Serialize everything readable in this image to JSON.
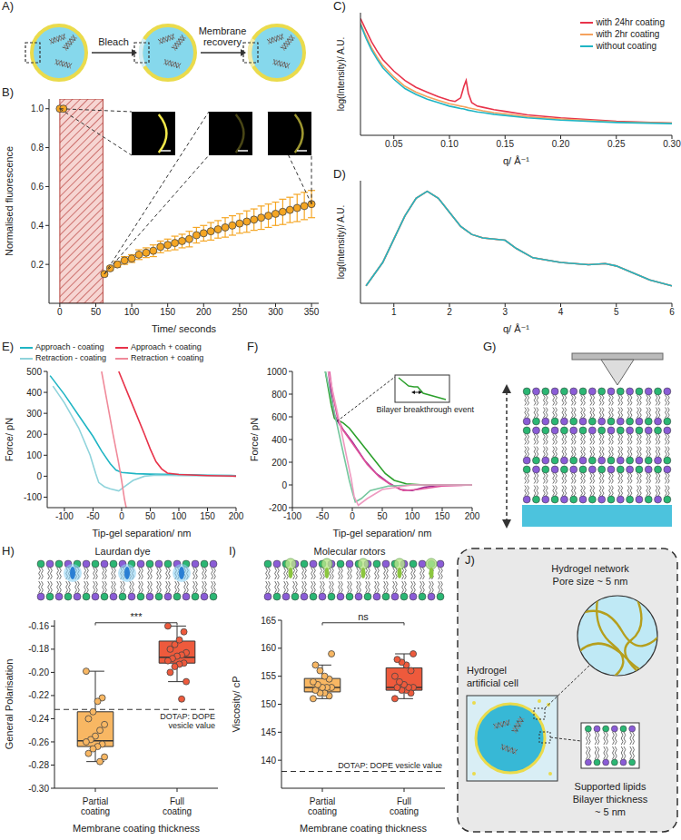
{
  "chart_data": [
    {
      "panel": "B)",
      "type": "scatter",
      "x_label": "Time/ seconds",
      "y_label": "Normalised fluorescence",
      "x": [
        0,
        5,
        62,
        70,
        80,
        90,
        100,
        110,
        120,
        130,
        140,
        150,
        160,
        170,
        180,
        190,
        200,
        210,
        220,
        230,
        240,
        250,
        260,
        270,
        280,
        290,
        300,
        310,
        320,
        330,
        340,
        350
      ],
      "values": [
        1.0,
        1.0,
        0.15,
        0.18,
        0.2,
        0.22,
        0.23,
        0.25,
        0.26,
        0.27,
        0.29,
        0.3,
        0.31,
        0.32,
        0.33,
        0.35,
        0.36,
        0.37,
        0.38,
        0.39,
        0.4,
        0.41,
        0.42,
        0.43,
        0.44,
        0.45,
        0.46,
        0.47,
        0.48,
        0.49,
        0.5,
        0.51
      ],
      "error": [
        0,
        0,
        0.01,
        0.01,
        0.015,
        0.02,
        0.02,
        0.025,
        0.025,
        0.03,
        0.03,
        0.03,
        0.035,
        0.035,
        0.04,
        0.04,
        0.04,
        0.045,
        0.045,
        0.05,
        0.05,
        0.05,
        0.055,
        0.055,
        0.06,
        0.06,
        0.06,
        0.065,
        0.065,
        0.07,
        0.07,
        0.07
      ],
      "color": "#f5a623",
      "marker": "circle",
      "shaded_region": [
        0,
        60
      ],
      "xlim": [
        -15,
        360
      ],
      "ylim": [
        0,
        1.05
      ],
      "xticks": [
        0,
        50,
        100,
        150,
        200,
        250,
        300,
        350
      ],
      "yticks": [
        0.2,
        0.4,
        0.6,
        0.8,
        {
          "value": 1.0,
          "label": "1.0"
        }
      ]
    },
    {
      "panel": "C)",
      "type": "line",
      "x_label": "q/ Å⁻¹",
      "y_label": "log(Intensity)/ A.U.",
      "x": [
        0.02,
        0.025,
        0.03,
        0.035,
        0.04,
        0.05,
        0.06,
        0.07,
        0.08,
        0.09,
        0.1,
        0.105,
        0.11,
        0.113,
        0.115,
        0.117,
        0.12,
        0.125,
        0.13,
        0.14,
        0.15,
        0.17,
        0.2,
        0.25,
        0.3
      ],
      "series": [
        {
          "name": "with 24hr coating",
          "color": "#e8334a",
          "values": [
            10,
            9.0,
            8.0,
            7.2,
            6.5,
            5.5,
            4.7,
            4.1,
            3.7,
            3.3,
            3.0,
            2.9,
            3.2,
            4.2,
            4.7,
            3.6,
            2.8,
            2.5,
            2.4,
            2.2,
            2.05,
            1.75,
            1.5,
            1.2,
            1.05
          ]
        },
        {
          "name": "with 2hr coating",
          "color": "#f5a25d",
          "values": [
            9.6,
            8.5,
            7.5,
            6.7,
            6.0,
            5.0,
            4.2,
            3.7,
            3.3,
            3.0,
            2.7,
            2.6,
            2.5,
            2.45,
            2.4,
            2.35,
            2.3,
            2.2,
            2.1,
            1.95,
            1.85,
            1.6,
            1.4,
            1.15,
            1.05
          ]
        },
        {
          "name": "without coating",
          "color": "#1fb5c4",
          "values": [
            9.5,
            8.3,
            7.3,
            6.5,
            5.8,
            4.8,
            4.0,
            3.5,
            3.1,
            2.8,
            2.5,
            2.4,
            2.3,
            2.25,
            2.2,
            2.15,
            2.1,
            2.0,
            1.95,
            1.8,
            1.7,
            1.5,
            1.3,
            1.1,
            1.0
          ]
        }
      ],
      "xlim": [
        0.02,
        0.3
      ],
      "ylim": [
        0,
        10.5
      ],
      "xticks": [
        0.05,
        {
          "value": 0.1,
          "label": "0.10"
        },
        0.15,
        {
          "value": 0.2,
          "label": "0.20"
        },
        0.25,
        {
          "value": 0.3,
          "label": "0.30"
        }
      ],
      "tick_labels": "x",
      "legend": "upper right"
    },
    {
      "panel": "D)",
      "type": "line",
      "x_label": "q/ Å⁻¹",
      "y_label": "log(Intensity)/ A.U.",
      "x": [
        0.5,
        0.8,
        1.0,
        1.2,
        1.4,
        1.6,
        1.8,
        2.0,
        2.2,
        2.4,
        2.6,
        2.8,
        3.0,
        3.2,
        3.5,
        4.0,
        4.5,
        4.8,
        5.0,
        5.3,
        5.6,
        6.0
      ],
      "series": [
        {
          "color": "#e8334a",
          "values": [
            1.5,
            3.5,
            5.5,
            7.5,
            9.0,
            9.6,
            9.0,
            7.8,
            6.6,
            5.9,
            5.6,
            5.5,
            5.4,
            4.7,
            3.9,
            3.5,
            3.3,
            3.4,
            3.2,
            2.6,
            2.0,
            1.5
          ]
        },
        {
          "color": "#f5a25d",
          "values": [
            1.5,
            3.5,
            5.5,
            7.5,
            9.0,
            9.6,
            9.0,
            7.8,
            6.6,
            5.9,
            5.6,
            5.5,
            5.4,
            4.7,
            3.9,
            3.5,
            3.3,
            3.4,
            3.2,
            2.6,
            2.0,
            1.5
          ]
        },
        {
          "color": "#1fb5c4",
          "values": [
            1.5,
            3.5,
            5.5,
            7.5,
            9.0,
            9.6,
            9.0,
            7.8,
            6.6,
            5.9,
            5.6,
            5.5,
            5.4,
            4.7,
            3.9,
            3.5,
            3.3,
            3.4,
            3.2,
            2.6,
            2.0,
            1.5
          ]
        }
      ],
      "xlim": [
        0.4,
        6.0
      ],
      "ylim": [
        0,
        10.5
      ],
      "xticks": [
        1,
        2,
        3,
        4,
        5,
        6
      ],
      "tick_labels": "x"
    },
    {
      "panel": "E)",
      "type": "line",
      "x_label": "Tip-gel separation/ nm",
      "y_label": "Force/ pN",
      "series": [
        {
          "name": "Approach - coating",
          "color": "#1fb5c4",
          "x": [
            -125,
            -100,
            -75,
            -50,
            -35,
            -20,
            -10,
            0,
            25,
            50,
            100,
            150,
            200
          ],
          "values": [
            480,
            390,
            290,
            190,
            120,
            60,
            30,
            18,
            12,
            10,
            8,
            5,
            3
          ]
        },
        {
          "name": "Retraction - coating",
          "color": "#8fd3db",
          "x": [
            -120,
            -100,
            -75,
            -55,
            -45,
            -40,
            -30,
            -20,
            -5,
            5,
            20,
            40,
            60,
            100,
            150,
            200
          ],
          "values": [
            430,
            350,
            230,
            100,
            10,
            -30,
            -50,
            -60,
            -70,
            -50,
            -20,
            0,
            5,
            3,
            2,
            0
          ]
        },
        {
          "name": "Approach + coating",
          "color": "#e8334a",
          "x": [
            -5,
            10,
            25,
            40,
            50,
            60,
            70,
            80,
            100,
            150,
            200
          ],
          "values": [
            500,
            400,
            300,
            200,
            130,
            70,
            35,
            15,
            8,
            3,
            0
          ]
        },
        {
          "name": "Retraction + coating",
          "color": "#f08a9a",
          "x": [
            -35,
            -25,
            -15,
            -5,
            0,
            5,
            8
          ],
          "values": [
            500,
            350,
            200,
            60,
            -20,
            -110,
            -150
          ]
        }
      ],
      "xlim": [
        -130,
        200
      ],
      "ylim": [
        -150,
        500
      ],
      "xticks": [
        -100,
        -50,
        0,
        50,
        100,
        150,
        200
      ],
      "yticks": [
        -100,
        0,
        100,
        200,
        300,
        400,
        500
      ],
      "legend": "top"
    },
    {
      "panel": "F)",
      "type": "line",
      "x_label": "Tip-gel separation/ nm",
      "y_label": "Force/ pN",
      "annotation": "Bilayer breakthrough event",
      "series": [
        {
          "color": "#2ca02c",
          "x": [
            -45,
            -40,
            -35,
            -30,
            -25,
            -20,
            -15,
            -5,
            10,
            25,
            40,
            55,
            70,
            90,
            120,
            150,
            200
          ],
          "values": [
            1000,
            850,
            700,
            590,
            560,
            560,
            545,
            500,
            400,
            300,
            200,
            100,
            40,
            10,
            0,
            0,
            0
          ]
        },
        {
          "color": "#9b2d8f",
          "x": [
            -40,
            -35,
            -30,
            -20,
            0,
            20,
            40,
            60,
            80,
            100,
            120,
            150,
            200
          ],
          "values": [
            1000,
            800,
            620,
            520,
            380,
            220,
            100,
            20,
            -40,
            -50,
            -20,
            0,
            0
          ]
        },
        {
          "color": "#e0529c",
          "x": [
            -38,
            -32,
            -25,
            -15,
            5,
            25,
            45,
            65,
            85,
            110,
            150,
            200
          ],
          "values": [
            1000,
            780,
            600,
            480,
            330,
            180,
            70,
            0,
            -50,
            -40,
            -10,
            0
          ]
        },
        {
          "color": "#74c69d",
          "x": [
            -45,
            -35,
            -25,
            -15,
            -5,
            0,
            5,
            15,
            30,
            60,
            100,
            200
          ],
          "values": [
            1000,
            760,
            520,
            280,
            40,
            -60,
            -150,
            -120,
            -50,
            -10,
            0,
            0
          ]
        },
        {
          "color": "#ee9ac0",
          "x": [
            -40,
            -30,
            -20,
            -10,
            -2,
            3,
            10,
            25,
            50,
            100,
            200
          ],
          "values": [
            1000,
            760,
            520,
            260,
            60,
            -100,
            -180,
            -120,
            -40,
            0,
            0
          ]
        }
      ],
      "xlim": [
        -100,
        200
      ],
      "ylim": [
        -200,
        1000
      ],
      "xticks": [
        -100,
        -50,
        0,
        50,
        100,
        150,
        200
      ],
      "yticks": [
        -200,
        0,
        200,
        400,
        600,
        800,
        1000
      ]
    },
    {
      "panel": "H)",
      "type": "box",
      "title": "Laurdan dye",
      "x_label": "Membrane coating thickness",
      "y_label": "General Polarisation",
      "categories": [
        "Partial coating",
        "Full coating"
      ],
      "colors": [
        "#f8b763",
        "#ee5a3c"
      ],
      "marker": "circle",
      "values": [
        [
          -0.199,
          -0.222,
          -0.225,
          -0.234,
          -0.24,
          -0.245,
          -0.25,
          -0.255,
          -0.258,
          -0.26,
          -0.262,
          -0.264,
          -0.266,
          -0.27,
          -0.273,
          -0.277
        ],
        [
          -0.16,
          -0.165,
          -0.172,
          -0.176,
          -0.18,
          -0.183,
          -0.185,
          -0.186,
          -0.188,
          -0.19,
          -0.192,
          -0.193,
          -0.195,
          -0.2,
          -0.208,
          -0.223
        ]
      ],
      "box": [
        {
          "min": -0.277,
          "q1": -0.264,
          "median": -0.259,
          "q3": -0.234,
          "max": -0.199
        },
        {
          "min": -0.208,
          "q1": -0.192,
          "median": -0.187,
          "q3": -0.173,
          "max": -0.16
        }
      ],
      "reference_line": {
        "value": -0.232,
        "label": "DOTAP: DOPE vesicle value"
      },
      "significance": "***",
      "ylim": [
        -0.3,
        -0.155
      ],
      "yticks": [
        {
          "value": -0.3,
          "label": "-0.30"
        },
        -0.28,
        -0.26,
        -0.24,
        -0.22,
        {
          "value": -0.2,
          "label": "-0.20"
        },
        -0.18,
        -0.16
      ]
    },
    {
      "panel": "I)",
      "type": "box",
      "title": "Molecular rotors",
      "x_label": "Membrane coating thickness",
      "y_label": "Viscosity/ cP",
      "categories": [
        "Partial coating",
        "Full coating"
      ],
      "colors": [
        "#f8b763",
        "#ee5a3c"
      ],
      "marker": "circle",
      "values": [
        [
          151,
          151.5,
          152,
          152,
          152.5,
          153,
          153,
          153,
          153.5,
          154,
          154.5,
          155,
          156,
          157,
          159
        ],
        [
          151,
          152,
          152.5,
          152.5,
          153,
          153,
          153,
          153.5,
          154,
          155,
          156,
          157,
          157.5,
          158,
          159
        ]
      ],
      "box": [
        {
          "min": 151,
          "q1": 152.2,
          "median": 153,
          "q3": 154.6,
          "max": 157
        },
        {
          "min": 151,
          "q1": 152.5,
          "median": 153,
          "q3": 156.5,
          "max": 159
        }
      ],
      "reference_line": {
        "value": 138,
        "label": "DOTAP: DOPE vesicle value"
      },
      "significance": "ns",
      "ylim": [
        135,
        165
      ],
      "yticks": [
        140,
        145,
        150,
        155,
        160,
        165
      ]
    }
  ],
  "diagrams": {
    "A": {
      "panel": "A)",
      "labels": [
        "Bleach",
        "Membrane recovery"
      ]
    },
    "G": {
      "panel": "G)"
    },
    "J": {
      "panel": "J)",
      "network_label": [
        "Hydrogel network",
        "Pore size ~ 5 nm"
      ],
      "cell_label": [
        "Hydrogel",
        "artificial cell"
      ],
      "bilayer_label": [
        "Supported lipids",
        "Bilayer thickness",
        "~ 5 nm"
      ]
    }
  }
}
